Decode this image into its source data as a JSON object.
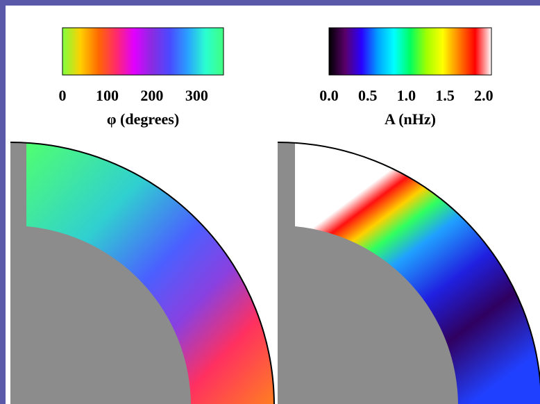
{
  "chart_data": [
    {
      "type": "colorbar",
      "axis_label": "φ (degrees)",
      "colormap": [
        "#7fff3f",
        "#ffd000",
        "#ff6a00",
        "#ff2a6a",
        "#e000ff",
        "#8a2be2",
        "#4a4aff",
        "#2aa0ff",
        "#2affd0",
        "#40ff80"
      ],
      "xlim": [
        0,
        360
      ],
      "xticks": [
        0,
        100,
        200,
        300
      ]
    },
    {
      "type": "colorbar",
      "axis_label": "A (nHz)",
      "colormap": [
        "#000000",
        "#5a006a",
        "#2a00ff",
        "#00a0ff",
        "#00ffff",
        "#00ff60",
        "#a0ff00",
        "#ffff00",
        "#ff8000",
        "#ff0000",
        "#ffffff"
      ],
      "xlim": [
        0,
        2.1
      ],
      "xticks": [
        {
          "value": 0,
          "label": "0.0"
        },
        {
          "value": 0.5,
          "label": "0.5"
        },
        {
          "value": 1,
          "label": "1.0"
        },
        {
          "value": 1.5,
          "label": "1.5"
        },
        {
          "value": 2,
          "label": "2.0"
        }
      ]
    }
  ]
}
